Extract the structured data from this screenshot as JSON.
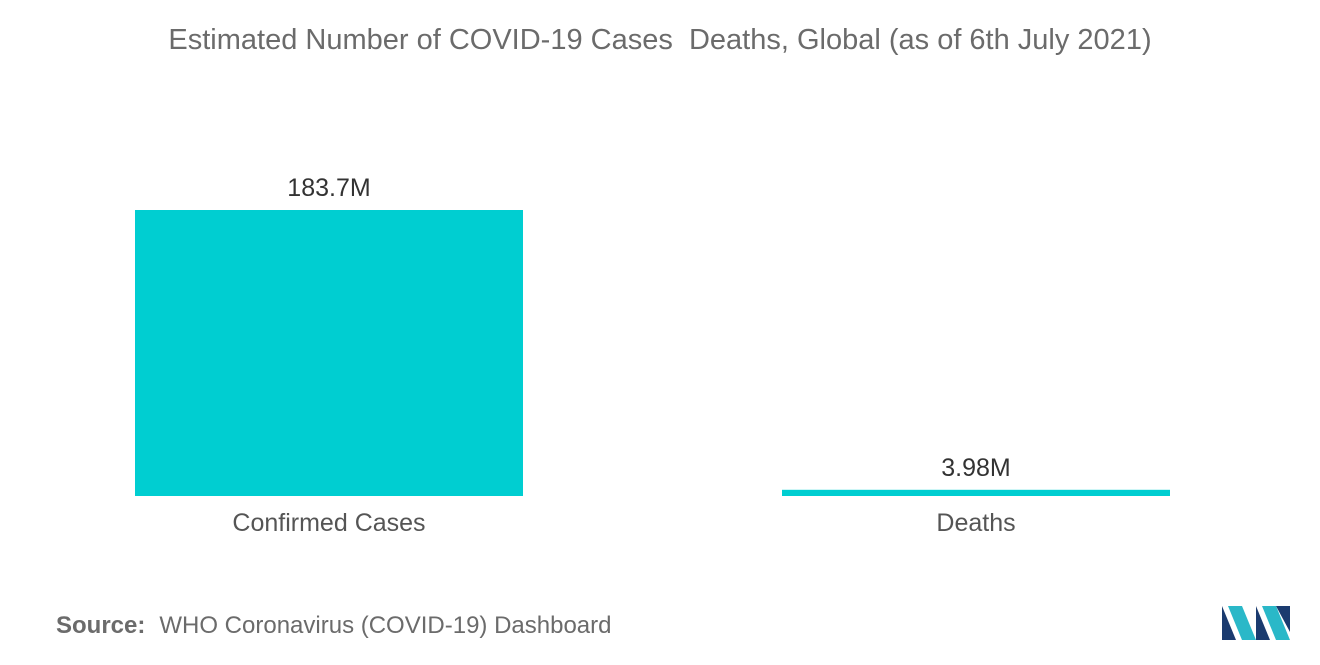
{
  "chart_data": {
    "type": "bar",
    "title": "Estimated Number of COVID-19 Cases  Deaths, Global (as of 6th July 2021)",
    "categories": [
      "Confirmed Cases",
      "Deaths"
    ],
    "values": [
      183.7,
      3.98
    ],
    "value_labels": [
      "183.7M",
      "3.98M"
    ],
    "unit": "M",
    "xlabel": "",
    "ylabel": "",
    "ylim": [
      0,
      183.7
    ],
    "grid": false,
    "legend": "none",
    "bar_color": "#00ced1"
  },
  "source": {
    "label": "Source:",
    "text": "WHO Coronavirus (COVID-19) Dashboard"
  },
  "colors": {
    "bar": "#00ced1",
    "text": "#6b6b6b",
    "logo_dark": "#1b3b6f",
    "logo_light": "#2ab8c8"
  },
  "logo": {
    "icon": "mordor-intelligence-logo-icon"
  }
}
